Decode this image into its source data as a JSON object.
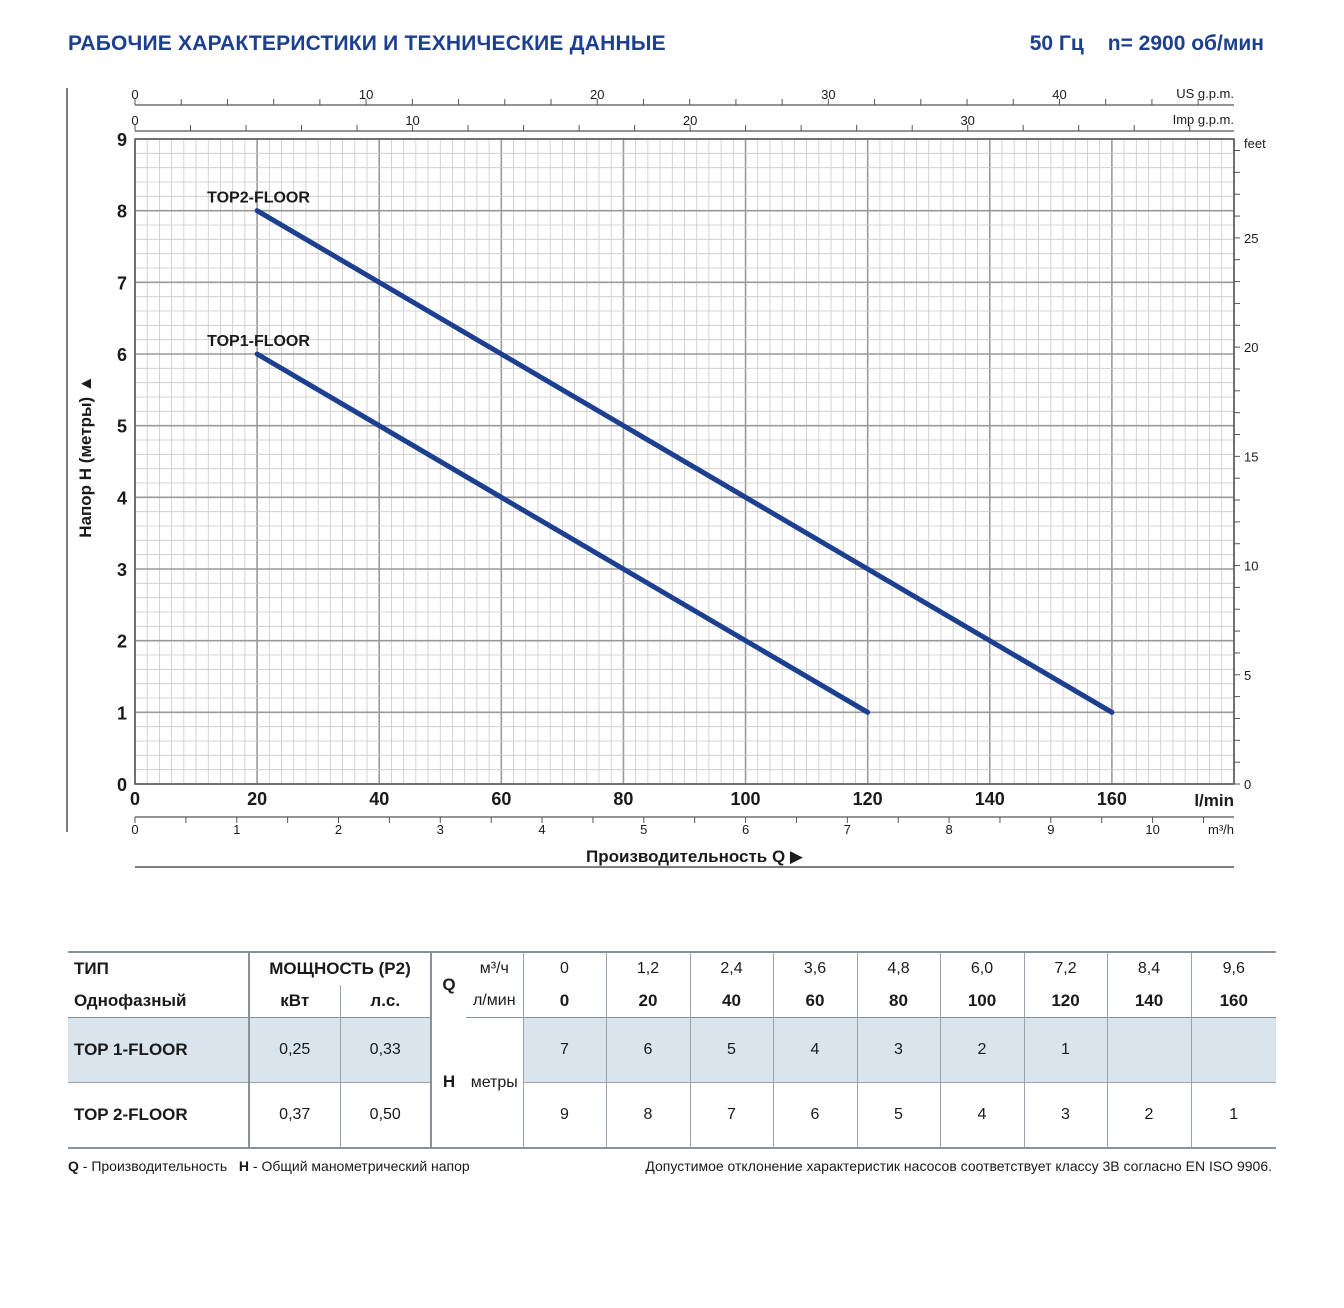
{
  "header": {
    "title": "РАБОЧИЕ ХАРАКТЕРИСТИКИ И ТЕХНИЧЕСКИЕ ДАННЫЕ",
    "frequency": "50 Гц",
    "speed": "n= 2900 об/мин"
  },
  "chart_data": {
    "type": "line",
    "xlabel": "Производительность Q",
    "ylabel": "Напор H (метры)",
    "xlim": [
      0,
      180
    ],
    "ylim": [
      0,
      9
    ],
    "x_ticks": [
      "0",
      "20",
      "40",
      "60",
      "80",
      "100",
      "120",
      "140",
      "160"
    ],
    "x_unit": "l/min",
    "y_ticks": [
      "0",
      "1",
      "2",
      "3",
      "4",
      "5",
      "6",
      "7",
      "8",
      "9"
    ],
    "grid": true,
    "secondary_axes": {
      "us_gpm": {
        "label": "US g.p.m.",
        "ticks": [
          "0",
          "10",
          "20",
          "30",
          "40"
        ]
      },
      "imp_gpm": {
        "label": "Imp g.p.m.",
        "ticks": [
          "0",
          "10",
          "20",
          "30"
        ]
      },
      "m3h": {
        "label": "m³/h",
        "ticks": [
          "0",
          "1",
          "2",
          "3",
          "4",
          "5",
          "6",
          "7",
          "8",
          "9",
          "10"
        ]
      },
      "feet": {
        "label": "feet",
        "ticks": [
          "0",
          "5",
          "10",
          "15",
          "20",
          "25"
        ]
      }
    },
    "series": [
      {
        "name": "TOP2-FLOOR",
        "x": [
          20,
          160
        ],
        "y": [
          8,
          1
        ]
      },
      {
        "name": "TOP1-FLOOR",
        "x": [
          20,
          120
        ],
        "y": [
          6,
          1
        ]
      }
    ],
    "line_color": "#1c3f8f"
  },
  "table": {
    "type_label": "ТИП",
    "phase_label": "Однофазный",
    "power_label": "МОЩНОСТЬ (P2)",
    "kw_label": "кВт",
    "hp_label": "л.с.",
    "q_label": "Q",
    "m3h_label": "м³/ч",
    "lmin_label": "л/мин",
    "h_label": "H",
    "h_unit": "метры",
    "q_m3h": [
      "0",
      "1,2",
      "2,4",
      "3,6",
      "4,8",
      "6,0",
      "7,2",
      "8,4",
      "9,6"
    ],
    "q_lmin": [
      "0",
      "20",
      "40",
      "60",
      "80",
      "100",
      "120",
      "140",
      "160"
    ],
    "rows": [
      {
        "model": "TOP 1-FLOOR",
        "kw": "0,25",
        "hp": "0,33",
        "h": [
          "7",
          "6",
          "5",
          "4",
          "3",
          "2",
          "1",
          "",
          ""
        ]
      },
      {
        "model": "TOP 2-FLOOR",
        "kw": "0,37",
        "hp": "0,50",
        "h": [
          "9",
          "8",
          "7",
          "6",
          "5",
          "4",
          "3",
          "2",
          "1"
        ]
      }
    ]
  },
  "footer": {
    "q_abbr": "Q",
    "q_desc": " - Производительность",
    "h_abbr": "H",
    "h_desc": " - Общий манометрический напор",
    "note": "Допустимое отклонение характеристик насосов соответствует классу 3В согласно EN ISO 9906."
  }
}
